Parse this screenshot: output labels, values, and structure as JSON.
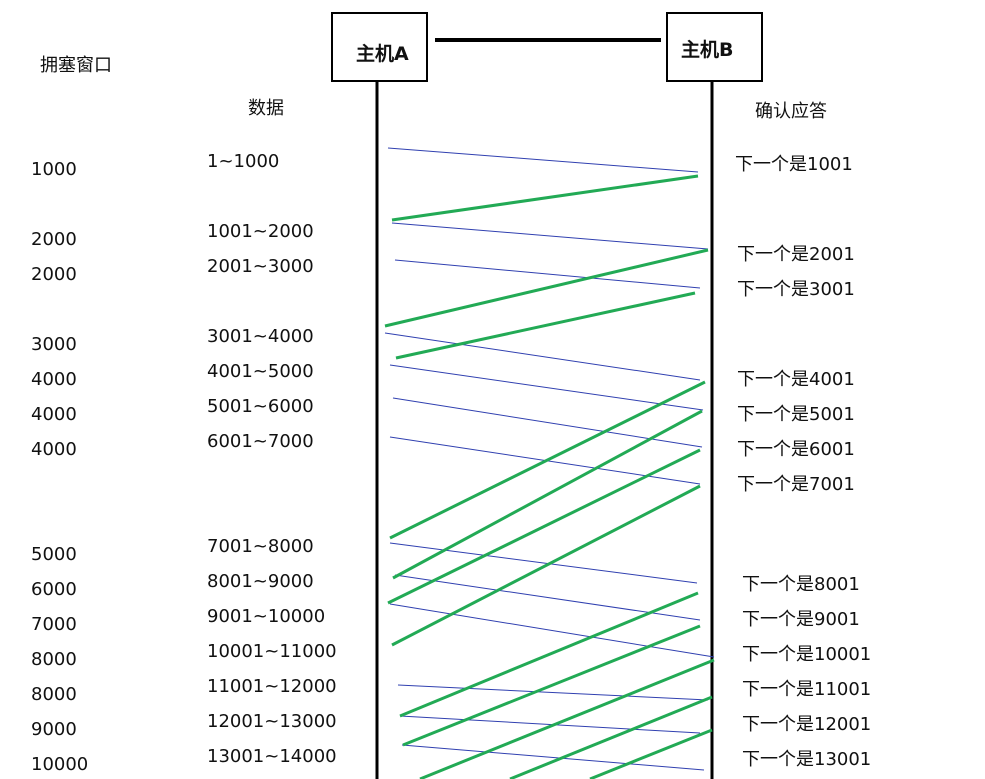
{
  "headers": {
    "cwnd": "拥塞窗口",
    "data": "数据",
    "ack": "确认应答"
  },
  "hosts": {
    "a": "主机A",
    "b": "主机B"
  },
  "cwnd_values": [
    "1000",
    "2000",
    "2000",
    "3000",
    "4000",
    "4000",
    "4000",
    "5000",
    "6000",
    "7000",
    "8000",
    "8000",
    "9000",
    "10000"
  ],
  "data_ranges": [
    "1~1000",
    "1001~2000",
    "2001~3000",
    "3001~4000",
    "4001~5000",
    "5001~6000",
    "6001~7000",
    "7001~8000",
    "8001~9000",
    "9001~10000",
    "10001~11000",
    "11001~12000",
    "12001~13000",
    "13001~14000"
  ],
  "acks": [
    "下一个是1001",
    "下一个是2001",
    "下一个是3001",
    "下一个是4001",
    "下一个是5001",
    "下一个是6001",
    "下一个是7001",
    "下一个是8001",
    "下一个是9001",
    "下一个是10001",
    "下一个是11001",
    "下一个是12001",
    "下一个是13001"
  ],
  "colors": {
    "data_segment": "#3040b0",
    "ack_segment": "#22aa55",
    "line": "#000000"
  }
}
